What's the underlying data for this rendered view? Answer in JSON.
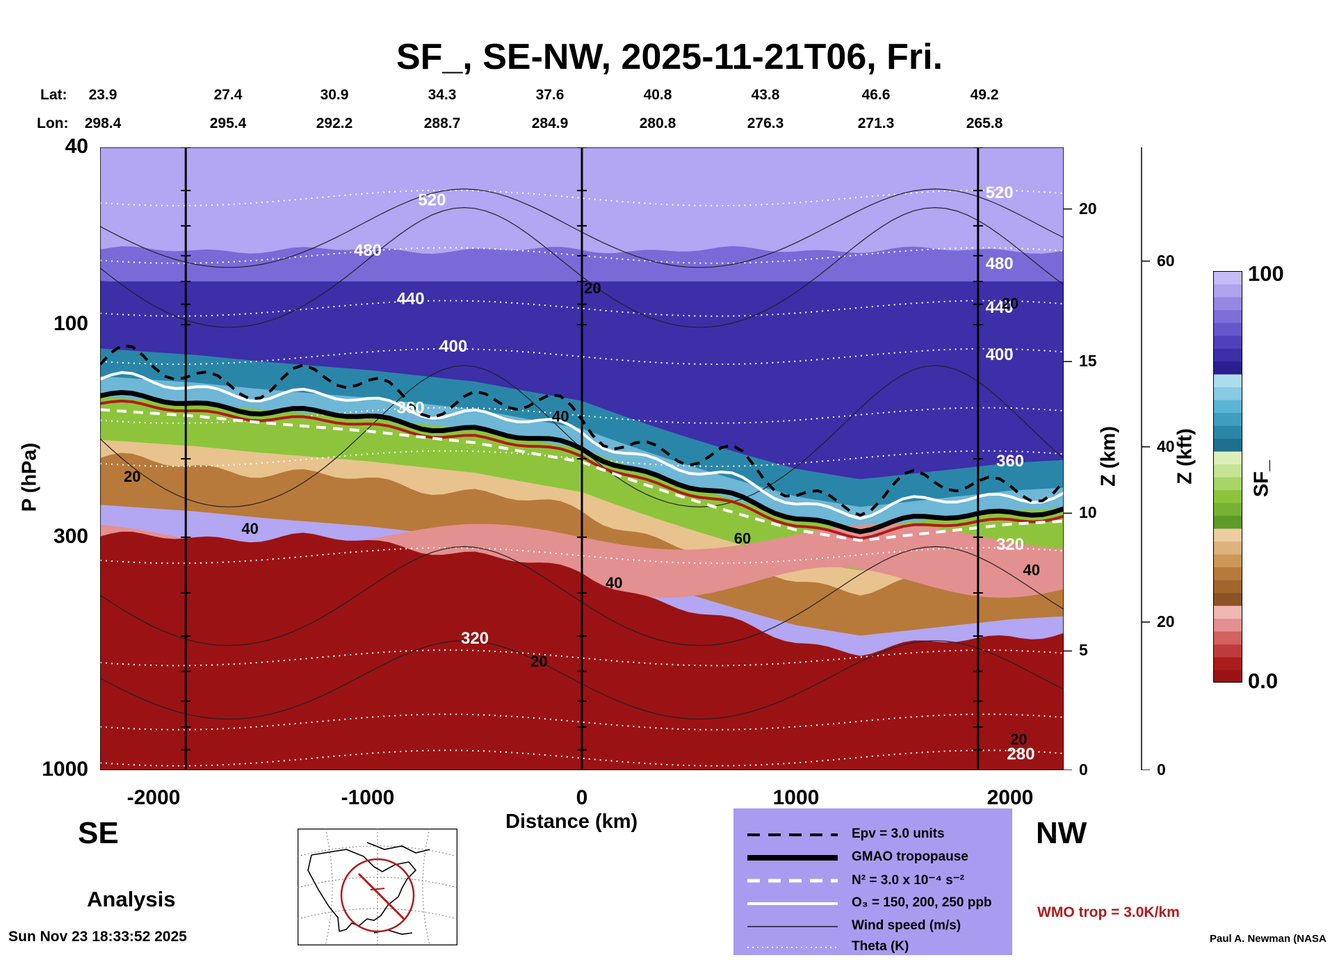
{
  "title": "SF_, SE-NW, 2025-11-21T06, Fri.",
  "lat_label": "Lat:",
  "lon_label": "Lon:",
  "lats": [
    "23.9",
    "27.4",
    "30.9",
    "34.3",
    "37.6",
    "40.8",
    "43.8",
    "46.6",
    "49.2"
  ],
  "lons": [
    "298.4",
    "295.4",
    "292.2",
    "288.7",
    "284.9",
    "280.8",
    "276.3",
    "271.3",
    "265.8"
  ],
  "y_axis_label": "P (hPa)",
  "z_km_label": "Z (km)",
  "z_kft_label": "Z (kft)",
  "colorbar_label": "SF_",
  "colorbar_max": "100",
  "colorbar_min": "0.0",
  "left_end": "SE",
  "right_end": "NW",
  "analysis_label": "Analysis",
  "timestamp": "Sun Nov 23 18:33:52 2025",
  "credit": "Paul A. Newman (NASA",
  "wmo_note": "WMO trop = 3.0K/km",
  "legend": {
    "epv": "Epv = 3.0 units",
    "tropopause": "GMAO tropopause",
    "n2": "N² = 3.0 x 10⁻⁴ s⁻²",
    "o3": "O₃ = 150, 200, 250 ppb",
    "wind": "Wind speed (m/s)",
    "theta": "Theta (K)"
  },
  "colors": {
    "dark_red": "#9b1214",
    "brown": "#b87a3a",
    "green": "#8ec43c",
    "teal": "#2a86a8",
    "dark_blue": "#3c2fa8",
    "lavender": "#b3a6f2",
    "legend_bg": "#a99cf0",
    "wmo_red": "#b01c1c"
  },
  "chart_data": {
    "type": "heatmap",
    "title": "SF_, SE-NW, 2025-11-21T06, Fri.",
    "xlabel": "Distance (km)",
    "ylabel": "P (hPa)",
    "xlim": [
      -2250,
      2250
    ],
    "y_log_scale": true,
    "ylim": [
      1000,
      40
    ],
    "x_ticks": [
      "-2000",
      "-1000",
      "0",
      "1000",
      "2000"
    ],
    "y_ticks": [
      "40",
      "100",
      "300",
      "1000"
    ],
    "z_km_ticks": [
      "0",
      "5",
      "10",
      "15",
      "20"
    ],
    "z_kft_ticks": [
      "0",
      "20",
      "40",
      "60"
    ],
    "colorbar": {
      "label": "SF_",
      "min": 0.0,
      "max": 100
    },
    "vertical_lines_km": [
      -1850,
      0,
      1850
    ],
    "theta_labels": [
      "520",
      "480",
      "440",
      "400",
      "360",
      "320",
      "280"
    ],
    "wind_labels": [
      "20",
      "40",
      "60"
    ],
    "tropopause_profile": {
      "x": [
        -2250,
        -1800,
        -1500,
        -1000,
        -500,
        0,
        500,
        1000,
        1300,
        1600,
        2000,
        2250
      ],
      "p": [
        145,
        150,
        155,
        162,
        172,
        190,
        230,
        270,
        285,
        275,
        262,
        258
      ]
    }
  }
}
